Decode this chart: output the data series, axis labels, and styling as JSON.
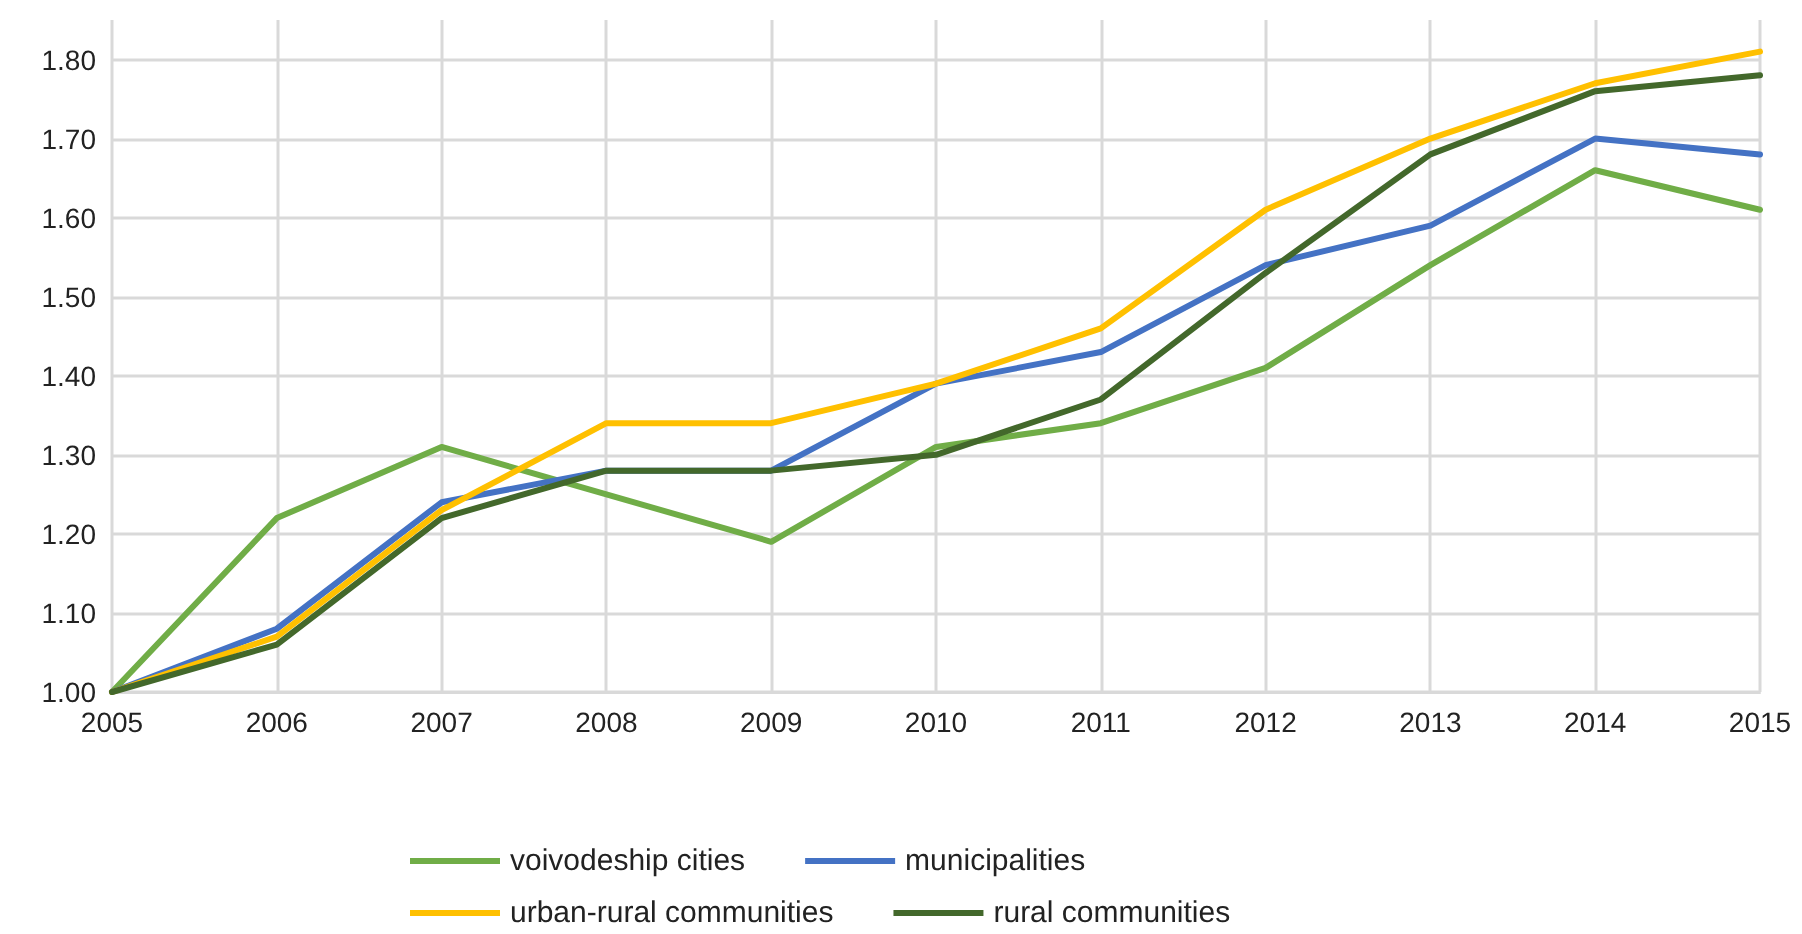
{
  "chart_data": {
    "type": "line",
    "x": [
      2005,
      2006,
      2007,
      2008,
      2009,
      2010,
      2011,
      2012,
      2013,
      2014,
      2015
    ],
    "xlim": [
      2005,
      2015
    ],
    "xticks": [
      2005,
      2006,
      2007,
      2008,
      2009,
      2010,
      2011,
      2012,
      2013,
      2014,
      2015
    ],
    "ylim": [
      1.0,
      1.85
    ],
    "yticks": [
      {
        "value": 1.0,
        "label": "1.00"
      },
      {
        "value": 1.1,
        "label": "1.10"
      },
      {
        "value": 1.2,
        "label": "1.20"
      },
      {
        "value": 1.3,
        "label": "1.30"
      },
      {
        "value": 1.4,
        "label": "1.40"
      },
      {
        "value": 1.5,
        "label": "1.50"
      },
      {
        "value": 1.6,
        "label": "1.60"
      },
      {
        "value": 1.7,
        "label": "1.70"
      },
      {
        "value": 1.8,
        "label": "1.80"
      }
    ],
    "grid": true,
    "legend": "bottom",
    "marker": "none",
    "line_style": "solid",
    "series": [
      {
        "name": "voivodeship cities",
        "color": "#70ad47",
        "values": [
          1.0,
          1.22,
          1.31,
          1.25,
          1.19,
          1.31,
          1.34,
          1.41,
          1.54,
          1.66,
          1.61
        ]
      },
      {
        "name": "municipalities",
        "color": "#4472c4",
        "values": [
          1.0,
          1.08,
          1.24,
          1.28,
          1.28,
          1.39,
          1.43,
          1.54,
          1.59,
          1.7,
          1.68
        ]
      },
      {
        "name": "urban-rural communities",
        "color": "#ffc000",
        "values": [
          1.0,
          1.07,
          1.23,
          1.34,
          1.34,
          1.39,
          1.46,
          1.61,
          1.7,
          1.77,
          1.81
        ]
      },
      {
        "name": "rural communities",
        "color": "#43682b",
        "values": [
          1.0,
          1.06,
          1.22,
          1.28,
          1.28,
          1.3,
          1.37,
          1.53,
          1.68,
          1.76,
          1.78
        ]
      }
    ]
  }
}
